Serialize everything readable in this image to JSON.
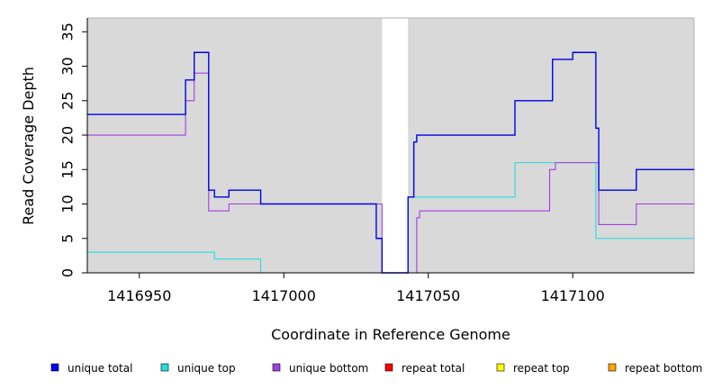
{
  "chart_data": {
    "type": "line",
    "step": true,
    "xlabel": "Coordinate in Reference Genome",
    "ylabel": "Read Coverage Depth",
    "xlim": [
      1416932,
      1417142
    ],
    "ylim": [
      0,
      37
    ],
    "x_ticks": [
      1416950,
      1417000,
      1417050,
      1417100
    ],
    "y_ticks": [
      0,
      5,
      10,
      15,
      20,
      25,
      30,
      35
    ],
    "gap": [
      1417034,
      1417043
    ],
    "background": "#d9d9d9",
    "legend_position": "bottom",
    "series": [
      {
        "name": "unique total",
        "color": "#0000ee",
        "x": [
          1416932,
          1416966,
          1416967,
          1416969,
          1416974,
          1416975,
          1416976,
          1416978,
          1416980,
          1416981,
          1416984,
          1416986,
          1416990,
          1416992,
          1417032,
          1417034,
          1417043,
          1417044,
          1417045,
          1417046,
          1417050,
          1417070,
          1417080,
          1417090,
          1417092,
          1417093,
          1417100,
          1417106,
          1417108,
          1417109,
          1417112,
          1417120,
          1417122,
          1417130,
          1417142
        ],
        "y": [
          23,
          28,
          28,
          32,
          12,
          12,
          11,
          11,
          11,
          12,
          12,
          12,
          12,
          10,
          5,
          0,
          11,
          11,
          19,
          20,
          20,
          20,
          25,
          25,
          25,
          31,
          32,
          32,
          21,
          12,
          12,
          12,
          15,
          15,
          15
        ]
      },
      {
        "name": "unique top",
        "color": "#22dddd",
        "x": [
          1416932,
          1416976,
          1416977,
          1416992,
          1416993,
          1417040,
          1417043,
          1417044,
          1417060,
          1417080,
          1417090,
          1417100,
          1417108,
          1417109,
          1417142
        ],
        "y": [
          3,
          2,
          2,
          0,
          0,
          0,
          11,
          11,
          11,
          16,
          16,
          16,
          5,
          5,
          5
        ]
      },
      {
        "name": "unique bottom",
        "color": "#a040e0",
        "x": [
          1416932,
          1416966,
          1416967,
          1416969,
          1416974,
          1416975,
          1416978,
          1416981,
          1416985,
          1416992,
          1417032,
          1417034,
          1417043,
          1417046,
          1417047,
          1417060,
          1417080,
          1417092,
          1417093,
          1417094,
          1417100,
          1417109,
          1417110,
          1417122,
          1417130,
          1417142
        ],
        "y": [
          20,
          25,
          25,
          29,
          9,
          9,
          9,
          10,
          10,
          10,
          10,
          0,
          0,
          8,
          9,
          9,
          9,
          15,
          15,
          16,
          16,
          7,
          7,
          10,
          10,
          10
        ]
      },
      {
        "name": "repeat total",
        "color": "#ff0000",
        "x": [
          1416932,
          1417142
        ],
        "y": [
          0,
          0
        ]
      },
      {
        "name": "repeat top",
        "color": "#ffff00",
        "x": [
          1416932,
          1417142
        ],
        "y": [
          0,
          0
        ]
      },
      {
        "name": "repeat bottom",
        "color": "#ffa500",
        "x": [
          1416932,
          1417142
        ],
        "y": [
          0,
          0
        ]
      }
    ]
  }
}
